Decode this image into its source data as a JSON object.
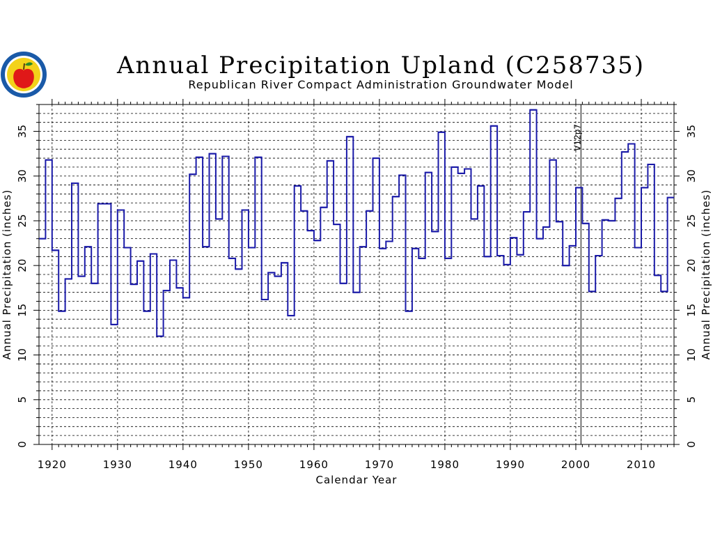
{
  "chart_data": {
    "type": "line",
    "step": true,
    "title": "Annual Precipitation Upland (C258735)",
    "subtitle": "Republican River Compact Administration Groundwater Model",
    "xlabel": "Calendar Year",
    "ylabel": "Annual Precipitation (inches)",
    "ylabel_right": "Annual Precipitation (inches)",
    "xlim": [
      1918,
      2015
    ],
    "ylim": [
      0,
      38
    ],
    "xticks": [
      1920,
      1930,
      1940,
      1950,
      1960,
      1970,
      1980,
      1990,
      2000,
      2010
    ],
    "yticks": [
      0,
      5,
      10,
      15,
      20,
      25,
      30,
      35
    ],
    "grid": true,
    "color": "#1a1aa8",
    "annotations": [
      {
        "x": 2001,
        "label": "V12p7"
      }
    ],
    "x": [
      1918,
      1919,
      1920,
      1921,
      1922,
      1923,
      1924,
      1925,
      1926,
      1927,
      1928,
      1929,
      1930,
      1931,
      1932,
      1933,
      1934,
      1935,
      1936,
      1937,
      1938,
      1939,
      1940,
      1941,
      1942,
      1943,
      1944,
      1945,
      1946,
      1947,
      1948,
      1949,
      1950,
      1951,
      1952,
      1953,
      1954,
      1955,
      1956,
      1957,
      1958,
      1959,
      1960,
      1961,
      1962,
      1963,
      1964,
      1965,
      1966,
      1967,
      1968,
      1969,
      1970,
      1971,
      1972,
      1973,
      1974,
      1975,
      1976,
      1977,
      1978,
      1979,
      1980,
      1981,
      1982,
      1983,
      1984,
      1985,
      1986,
      1987,
      1988,
      1989,
      1990,
      1991,
      1992,
      1993,
      1994,
      1995,
      1996,
      1997,
      1998,
      1999,
      2000,
      2001,
      2002,
      2003,
      2004,
      2005,
      2006,
      2007,
      2008,
      2009,
      2010,
      2011,
      2012,
      2013,
      2014
    ],
    "values": [
      23.0,
      31.8,
      21.7,
      14.9,
      18.5,
      29.2,
      18.8,
      22.1,
      18.0,
      26.9,
      26.9,
      13.4,
      26.2,
      22.0,
      17.9,
      20.5,
      14.9,
      21.3,
      12.1,
      17.2,
      20.6,
      17.5,
      16.4,
      30.2,
      32.1,
      22.1,
      32.5,
      25.2,
      32.2,
      20.8,
      19.6,
      26.2,
      22.0,
      32.1,
      16.2,
      19.2,
      18.8,
      20.3,
      14.4,
      28.9,
      26.1,
      23.9,
      22.8,
      26.5,
      31.7,
      24.6,
      18.0,
      34.4,
      17.0,
      22.1,
      26.1,
      32.0,
      21.9,
      22.7,
      27.7,
      30.1,
      14.9,
      21.9,
      20.8,
      30.4,
      23.8,
      34.9,
      20.8,
      31.0,
      30.3,
      30.8,
      25.2,
      28.9,
      21.0,
      35.6,
      21.1,
      20.1,
      23.1,
      21.2,
      26.0,
      37.4,
      23.0,
      24.3,
      31.8,
      24.9,
      20.0,
      22.2,
      28.7,
      24.7,
      17.1,
      21.1,
      25.1,
      25.0,
      27.5,
      32.7,
      33.6,
      22.0,
      28.7,
      31.3,
      18.9,
      17.1,
      27.6
    ]
  }
}
